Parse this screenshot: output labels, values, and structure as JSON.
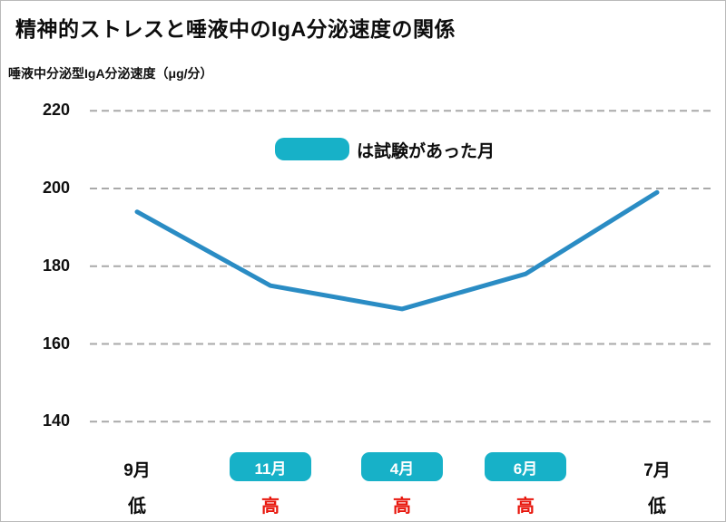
{
  "title": "精神的ストレスと唾液中のIgA分泌速度の関係",
  "y_axis_label": "唾液中分泌型IgA分泌速度（μg/分）",
  "legend": {
    "swatch_color": "#17b1c8",
    "text": "は試験があった月"
  },
  "colors": {
    "line": "#2a8cc4",
    "highlight_box": "#17b1c8",
    "gridline": "#a9a9a9",
    "stress_high": "#e8160c",
    "stress_low": "#0d0d0d",
    "box_text": "#ffffff"
  },
  "chart_data": {
    "type": "line",
    "title": "精神的ストレスと唾液中のIgA分泌速度の関係",
    "ylabel": "唾液中分泌型IgA分泌速度（μg/分）",
    "xlabel": "",
    "categories": [
      "9月",
      "11月",
      "4月",
      "6月",
      "7月"
    ],
    "values": [
      194,
      175,
      169,
      178,
      199
    ],
    "stress_levels": [
      "低",
      "高",
      "高",
      "高",
      "低"
    ],
    "exam_months": [
      false,
      true,
      true,
      true,
      false
    ],
    "y_ticks": [
      220,
      200,
      180,
      160,
      140
    ],
    "ylim": [
      130,
      230
    ],
    "grid": "horizontal-dashed",
    "legend": {
      "swatch": "exam-month-highlight",
      "text": "は試験があった月",
      "position": "top-center"
    }
  }
}
